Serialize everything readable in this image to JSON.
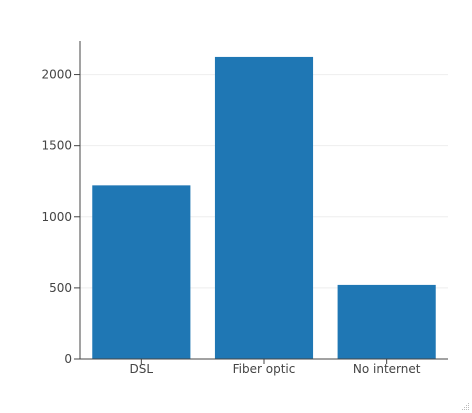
{
  "chart_data": {
    "type": "bar",
    "categories": [
      "DSL",
      "Fiber optic",
      "No internet"
    ],
    "values": [
      1221,
      2124,
      521
    ],
    "title": "",
    "xlabel": "",
    "ylabel": "",
    "ylim": [
      0,
      2236
    ],
    "yticks": [
      0,
      500,
      1000,
      1500,
      2000
    ],
    "grid": true,
    "legend": "none",
    "colors": {
      "bar": "#1f77b4",
      "grid": "#eeeeee",
      "axis": "#444444",
      "text": "#444444"
    }
  }
}
